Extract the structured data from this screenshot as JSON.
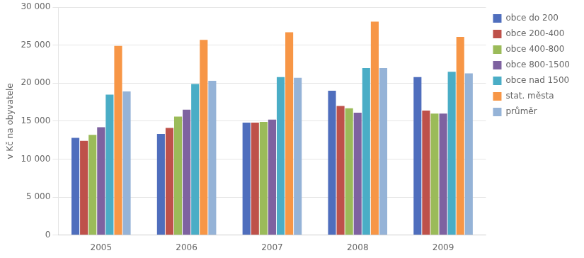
{
  "chart_data": {
    "type": "bar",
    "categories": [
      "2005",
      "2006",
      "2007",
      "2008",
      "2009"
    ],
    "series": [
      {
        "name": "obce do 200",
        "color": "#4F6EBD",
        "values": [
          12800,
          13300,
          14800,
          19000,
          20800
        ]
      },
      {
        "name": "obce 200-400",
        "color": "#BE514A",
        "values": [
          12400,
          14100,
          14800,
          17000,
          16400
        ]
      },
      {
        "name": "obce 400-800",
        "color": "#9BBB59",
        "values": [
          13200,
          15600,
          14900,
          16700,
          16000
        ]
      },
      {
        "name": "obce 800-1500",
        "color": "#7E62A0",
        "values": [
          14200,
          16500,
          15200,
          16100,
          16000
        ]
      },
      {
        "name": "obce nad 1500",
        "color": "#4AADC6",
        "values": [
          18500,
          19900,
          20800,
          22000,
          21500
        ]
      },
      {
        "name": "stat. města",
        "color": "#F79646",
        "values": [
          24900,
          25700,
          26700,
          28100,
          26100
        ]
      },
      {
        "name": "průměr",
        "color": "#95B3D7",
        "values": [
          18900,
          20300,
          20700,
          22000,
          21300
        ]
      }
    ],
    "ylabel": "v Kč na obyvatele",
    "ylim": [
      0,
      30000
    ],
    "yticks": [
      0,
      {
        "value": 5000,
        "label": "5 000"
      },
      {
        "value": 10000,
        "label": "10 000"
      },
      {
        "value": 15000,
        "label": "15 000"
      },
      {
        "value": 20000,
        "label": "20 000"
      },
      {
        "value": 25000,
        "label": "25 000"
      },
      {
        "value": 30000,
        "label": "30 000"
      }
    ],
    "grid": true,
    "legend": "right"
  }
}
